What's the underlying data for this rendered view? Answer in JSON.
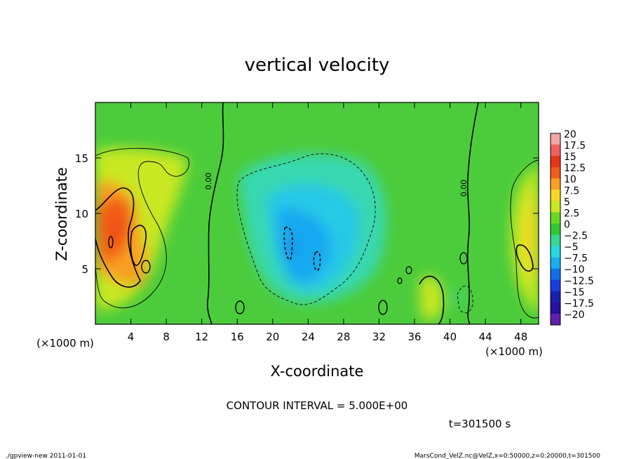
{
  "chart_data": {
    "type": "heatmap",
    "title": "vertical velocity",
    "xlabel": "X-coordinate",
    "ylabel": "Z-coordinate",
    "x_unit": "(×1000 m)",
    "y_unit": "(×1000 m)",
    "xlim": [
      0,
      50
    ],
    "ylim": [
      0,
      20
    ],
    "xticks": [
      "4",
      "8",
      "12",
      "16",
      "20",
      "24",
      "28",
      "32",
      "36",
      "40",
      "44",
      "48"
    ],
    "yticks": [
      "5",
      "10",
      "15"
    ],
    "contour_line_labels": [
      "0.00",
      "0.00"
    ],
    "contour_interval_text": "CONTOUR INTERVAL = 5.000E+00",
    "time_text": "t=301500 s",
    "colorbar": {
      "labels": [
        "20",
        "17.5",
        "15",
        "12.5",
        "10",
        "7.5",
        "5",
        "2.5",
        "0",
        "−2.5",
        "−5",
        "−7.5",
        "−10",
        "−12.5",
        "−15",
        "−17.5",
        "−20"
      ],
      "colors": [
        "#f2a6a6",
        "#f06060",
        "#e83418",
        "#f25c18",
        "#f8a020",
        "#f8d820",
        "#c8e820",
        "#68d820",
        "#30c830",
        "#38d898",
        "#28d8e0",
        "#18b0f0",
        "#1070e8",
        "#1840e0",
        "#1820b0",
        "#2810a0",
        "#6020b0"
      ]
    },
    "field_points": [
      {
        "x": 2.5,
        "y": 8.5,
        "w": 16
      },
      {
        "x": 5.5,
        "y": 6.5,
        "w": 9
      },
      {
        "x": 8,
        "y": 11,
        "w": 4
      },
      {
        "x": 49,
        "y": 8.5,
        "w": 8
      },
      {
        "x": 38,
        "y": 2.5,
        "w": 6
      },
      {
        "x": 22,
        "y": 7,
        "w": -9
      },
      {
        "x": 25,
        "y": 6,
        "w": -8
      },
      {
        "x": 27,
        "y": 10,
        "w": -5
      },
      {
        "x": 41,
        "y": 2.5,
        "w": -3
      }
    ]
  },
  "footer": {
    "left": "./gpview-new   2011-01-01",
    "right": "MarsCond_VelZ.nc@VelZ,x=0:50000,z=0:20000,t=301500"
  }
}
